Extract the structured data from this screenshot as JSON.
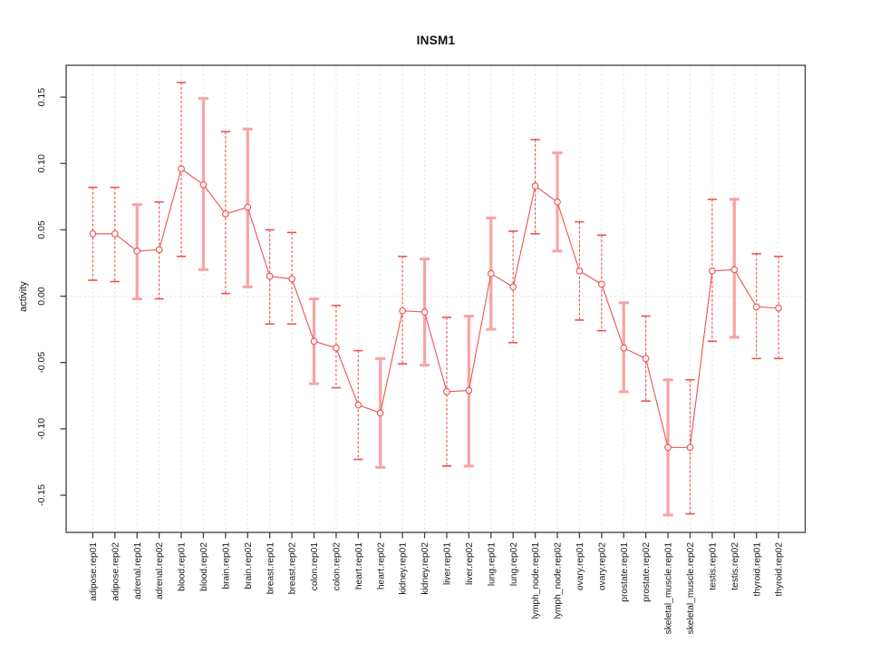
{
  "figure": {
    "background": "#ffffff"
  },
  "chart_data": {
    "type": "line",
    "title": "INSM1",
    "xlabel": "",
    "ylabel": "activity",
    "legend_position": "none",
    "grid": {
      "vertical_dotted": true,
      "zero_line_dotted": true
    },
    "ylim": [
      -0.178,
      0.174
    ],
    "yticks": [
      0.15,
      0.1,
      0.05,
      0.0,
      -0.05,
      -0.1,
      -0.15
    ],
    "ytick_labels": [
      "0.15",
      "0.10",
      "0.05",
      "0.00",
      "-0.05",
      "-0.10",
      "-0.15"
    ],
    "categories": [
      "adipose.rep01",
      "adipose.rep02",
      "adrenal.rep01",
      "adrenal.rep02",
      "blood.rep01",
      "blood.rep02",
      "brain.rep01",
      "brain.rep02",
      "breast.rep01",
      "breast.rep02",
      "colon.rep01",
      "colon.rep02",
      "heart.rep01",
      "heart.rep02",
      "kidney.rep01",
      "kidney.rep02",
      "liver.rep01",
      "liver.rep02",
      "lung.rep01",
      "lung.rep02",
      "lymph_node.rep01",
      "lymph_node.rep02",
      "ovary.rep01",
      "ovary.rep02",
      "prostate.rep01",
      "prostate.rep02",
      "skeletal_muscle.rep01",
      "skeletal_muscle.rep02",
      "testis.rep01",
      "testis.rep02",
      "thyroid.rep01",
      "thyroid.rep02"
    ],
    "series": [
      {
        "name": "activity",
        "marker": "open-circle",
        "values": [
          0.047,
          0.047,
          0.034,
          0.035,
          0.096,
          0.084,
          0.062,
          0.067,
          0.015,
          0.013,
          -0.034,
          -0.039,
          -0.082,
          -0.088,
          -0.011,
          -0.012,
          -0.072,
          -0.071,
          0.017,
          0.007,
          0.083,
          0.071,
          0.019,
          0.009,
          -0.039,
          -0.047,
          -0.114,
          -0.114,
          0.019,
          0.02,
          -0.008,
          -0.009
        ],
        "ci_lower": [
          0.012,
          0.011,
          -0.002,
          -0.002,
          0.03,
          0.02,
          0.002,
          0.007,
          -0.021,
          -0.021,
          -0.066,
          -0.069,
          -0.123,
          -0.129,
          -0.051,
          -0.052,
          -0.128,
          -0.128,
          -0.025,
          -0.035,
          0.047,
          0.034,
          -0.018,
          -0.026,
          -0.072,
          -0.079,
          -0.165,
          -0.164,
          -0.034,
          -0.031,
          -0.047,
          -0.047
        ],
        "ci_upper": [
          0.082,
          0.082,
          0.069,
          0.071,
          0.161,
          0.149,
          0.124,
          0.126,
          0.05,
          0.048,
          -0.002,
          -0.007,
          -0.041,
          -0.047,
          0.03,
          0.028,
          -0.016,
          -0.015,
          0.059,
          0.049,
          0.118,
          0.108,
          0.056,
          0.046,
          -0.005,
          -0.015,
          -0.063,
          -0.063,
          0.073,
          0.073,
          0.032,
          0.03
        ],
        "errorbar_styles": [
          "thin",
          "thin",
          "thick",
          "thin",
          "thin",
          "thick",
          "thin",
          "thick",
          "thin",
          "thin",
          "thick",
          "thin",
          "thin",
          "thick",
          "thin",
          "thick",
          "thin",
          "thick",
          "thick",
          "thin",
          "thin",
          "thick",
          "thin",
          "thin",
          "thick",
          "thin",
          "thick",
          "thin",
          "thin",
          "thick",
          "thin",
          "thin"
        ]
      }
    ],
    "colors": {
      "line": "#ef5150",
      "point_stroke": "#ef5150",
      "point_fill": "#ffffff",
      "errorbar_thin": "#ef5150",
      "errorbar_thick": "#f8a3a3",
      "grid": "#d9d9d9",
      "axis": "#3f3f3f",
      "text": "#1a1a1a"
    }
  }
}
